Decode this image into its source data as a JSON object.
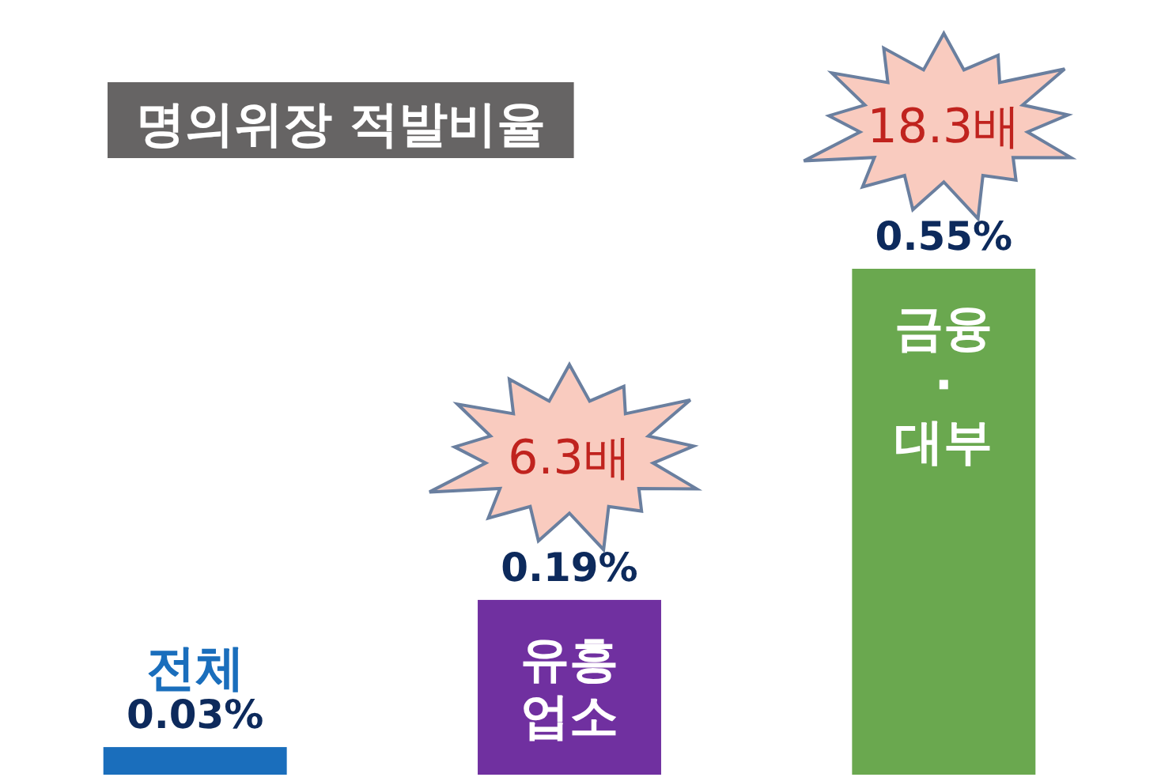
{
  "chart_data": {
    "type": "bar",
    "title": "명의위장 적발비율",
    "categories": [
      "전체",
      "유흥\n업소",
      "금융\n·\n대부"
    ],
    "values": [
      0.03,
      0.19,
      0.55
    ],
    "colors": [
      "#1a6ebc",
      "#7030a0",
      "#6aa84f"
    ],
    "value_labels": [
      "0.03%",
      "0.19%",
      "0.55%"
    ],
    "annotations": [
      "6.3배",
      "18.3배"
    ]
  }
}
